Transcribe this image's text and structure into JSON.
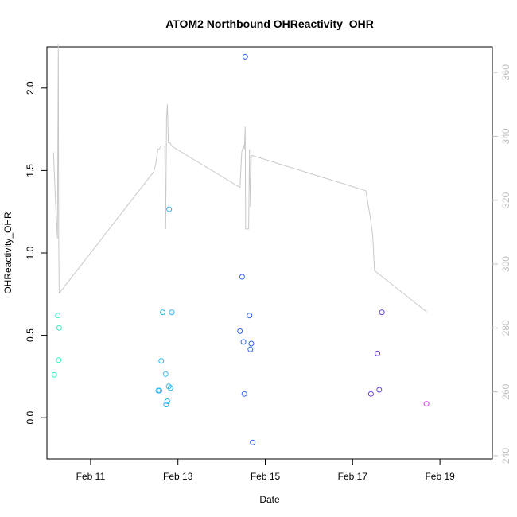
{
  "chart_data": {
    "type": "scatter",
    "title": "ATOM2 Northbound OHReactivity_OHR",
    "xlabel": "Date",
    "ylabel": "OHReactivity_OHR",
    "y2label": "",
    "xlim": [
      0.0,
      10.2
    ],
    "ylim": [
      -0.25,
      2.25
    ],
    "y2lim": [
      239,
      368
    ],
    "x_ticks": [
      {
        "value": 1,
        "label": "Feb 11"
      },
      {
        "value": 3,
        "label": "Feb 13"
      },
      {
        "value": 5,
        "label": "Feb 15"
      },
      {
        "value": 7,
        "label": "Feb 17"
      },
      {
        "value": 9,
        "label": "Feb 19"
      }
    ],
    "y_ticks": [
      {
        "value": 0.0,
        "label": "0.0"
      },
      {
        "value": 0.5,
        "label": "0.5"
      },
      {
        "value": 1.0,
        "label": "1.0"
      },
      {
        "value": 1.5,
        "label": "1.5"
      },
      {
        "value": 2.0,
        "label": "2.0"
      }
    ],
    "y2_ticks": [
      {
        "value": 240,
        "label": "240"
      },
      {
        "value": 260,
        "label": "260"
      },
      {
        "value": 280,
        "label": "280"
      },
      {
        "value": 300,
        "label": "300"
      },
      {
        "value": 320,
        "label": "320"
      },
      {
        "value": 340,
        "label": "340"
      },
      {
        "value": 360,
        "label": "360"
      }
    ],
    "points": [
      {
        "x": 0.17,
        "y": 0.26,
        "color": "#35f2c4"
      },
      {
        "x": 0.25,
        "y": 0.62,
        "color": "#35f2c4"
      },
      {
        "x": 0.27,
        "y": 0.35,
        "color": "#35f2c4"
      },
      {
        "x": 0.28,
        "y": 0.545,
        "color": "#35f2c4"
      },
      {
        "x": 2.55,
        "y": 0.165,
        "color": "#2bb5ef"
      },
      {
        "x": 2.58,
        "y": 0.165,
        "color": "#2bb5ef"
      },
      {
        "x": 2.62,
        "y": 0.345,
        "color": "#2bb5ef"
      },
      {
        "x": 2.65,
        "y": 0.64,
        "color": "#2bb5ef"
      },
      {
        "x": 2.72,
        "y": 0.265,
        "color": "#2bb5ef"
      },
      {
        "x": 2.73,
        "y": 0.08,
        "color": "#2bb5ef"
      },
      {
        "x": 2.76,
        "y": 0.1,
        "color": "#2bb5ef"
      },
      {
        "x": 2.79,
        "y": 0.19,
        "color": "#2bb5ef"
      },
      {
        "x": 2.8,
        "y": 1.265,
        "color": "#2bb5ef"
      },
      {
        "x": 2.83,
        "y": 0.18,
        "color": "#2bb5ef"
      },
      {
        "x": 2.86,
        "y": 0.64,
        "color": "#2bb5ef"
      },
      {
        "x": 4.42,
        "y": 0.525,
        "color": "#2f63ec"
      },
      {
        "x": 4.47,
        "y": 0.855,
        "color": "#2f63ec"
      },
      {
        "x": 4.5,
        "y": 0.46,
        "color": "#2f63ec"
      },
      {
        "x": 4.52,
        "y": 0.145,
        "color": "#2f63ec"
      },
      {
        "x": 4.54,
        "y": 2.19,
        "color": "#2f63ec"
      },
      {
        "x": 4.64,
        "y": 0.62,
        "color": "#2f63ec"
      },
      {
        "x": 4.66,
        "y": 0.415,
        "color": "#2f63ec"
      },
      {
        "x": 4.68,
        "y": 0.45,
        "color": "#2f63ec"
      },
      {
        "x": 4.71,
        "y": -0.15,
        "color": "#2f63ec"
      },
      {
        "x": 7.42,
        "y": 0.145,
        "color": "#6a3ee8"
      },
      {
        "x": 7.57,
        "y": 0.39,
        "color": "#6a3ee8"
      },
      {
        "x": 7.61,
        "y": 0.17,
        "color": "#6a3ee8"
      },
      {
        "x": 7.67,
        "y": 0.64,
        "color": "#6a3ee8"
      },
      {
        "x": 8.69,
        "y": 0.085,
        "color": "#d23ce6"
      }
    ],
    "line": {
      "color": "#c8c8c8",
      "x": [
        0.15,
        0.21,
        0.24,
        0.26,
        0.27,
        0.28,
        0.29,
        2.45,
        2.5,
        2.54,
        2.57,
        2.62,
        2.7,
        2.72,
        2.74,
        2.76,
        2.78,
        2.8,
        2.82,
        2.85,
        4.42,
        4.46,
        4.5,
        4.52,
        4.54,
        4.55,
        4.57,
        4.58,
        4.62,
        4.64,
        4.66,
        4.68,
        4.7,
        7.3,
        7.4,
        7.46,
        7.5,
        8.7
      ],
      "y2": [
        335,
        316,
        308,
        369,
        308,
        291,
        291,
        329,
        332,
        336,
        336,
        337,
        337,
        311,
        346,
        350,
        338,
        338,
        338,
        337,
        324,
        335,
        337,
        336,
        343,
        311,
        311,
        311,
        311,
        336,
        318,
        334,
        334,
        323,
        315,
        309,
        298,
        285
      ]
    },
    "grid": false,
    "legend": "none"
  }
}
